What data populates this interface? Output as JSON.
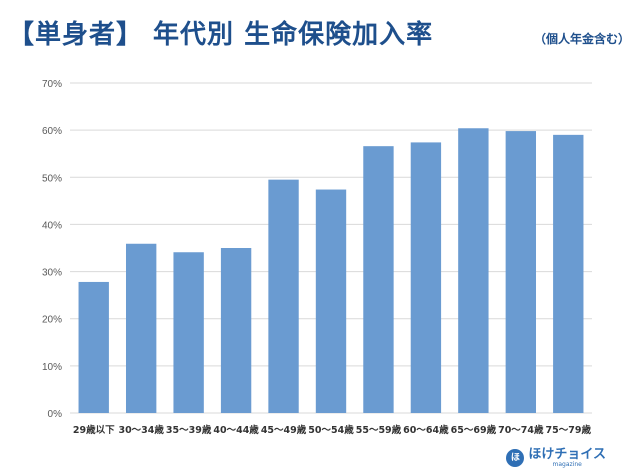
{
  "header": {
    "title": "【単身者】 年代別 生命保険加入率",
    "subtitle": "（個人年金含む）"
  },
  "logo": {
    "name": "ほけチョイス",
    "sub": "magazine"
  },
  "colors": {
    "title": "#1e4f8c",
    "bar": "#6a9bd1",
    "grid": "#d9d9d9",
    "axis_text": "#595959"
  },
  "chart_data": {
    "type": "bar",
    "title": "【単身者】 年代別 生命保険加入率",
    "subtitle": "（個人年金含む）",
    "xlabel": "",
    "ylabel": "",
    "categories": [
      "29歳以下",
      "30～34歳",
      "35～39歳",
      "40～44歳",
      "45～49歳",
      "50～54歳",
      "55～59歳",
      "60～64歳",
      "65～69歳",
      "70～74歳",
      "75～79歳"
    ],
    "values": [
      27.8,
      35.9,
      34.1,
      35.0,
      49.5,
      47.4,
      56.6,
      57.4,
      60.4,
      59.8,
      59.0
    ],
    "ylim": [
      0,
      70
    ],
    "yticks": [
      "0%",
      "10%",
      "20%",
      "30%",
      "40%",
      "50%",
      "60%",
      "70%"
    ],
    "ytick_values": [
      0,
      10,
      20,
      30,
      40,
      50,
      60,
      70
    ],
    "grid": true,
    "legend": "none"
  }
}
